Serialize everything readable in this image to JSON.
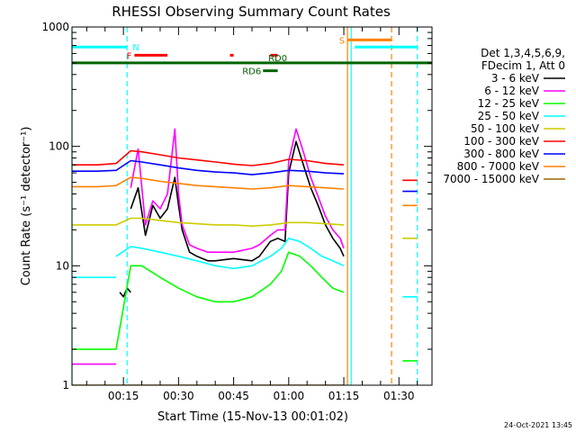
{
  "chart_data": {
    "type": "line",
    "title": "RHESSI Observing Summary Count Rates",
    "xlabel": "Start Time (15-Nov-13 00:01:02)",
    "ylabel": "Count Rate (s⁻¹ detector⁻¹)",
    "y_scale": "log",
    "ylim": [
      1,
      1000
    ],
    "xlim": [
      "00:01",
      "01:39"
    ],
    "grid": false,
    "legend_position": "right",
    "x_ticks": [
      "00:15",
      "00:30",
      "00:45",
      "01:00",
      "01:15",
      "01:30"
    ],
    "y_ticks": [
      "1",
      "10",
      "100",
      "1000"
    ],
    "legend_header": [
      "Det 1,3,4,5,6,9,",
      "FDecim 1, Att 0"
    ],
    "timestamp": "24-Oct-2021 13:45",
    "time_points": [
      "00:01",
      "00:10",
      "00:14",
      "00:17",
      "00:19",
      "00:21",
      "00:23",
      "00:25",
      "00:27",
      "00:29",
      "00:30",
      "00:31",
      "00:33",
      "00:35",
      "00:38",
      "00:40",
      "00:45",
      "00:50",
      "00:52",
      "00:55",
      "00:57",
      "00:59",
      "01:00",
      "01:02",
      "01:04",
      "01:06",
      "01:08",
      "01:10",
      "01:12",
      "01:14",
      "01:15"
    ],
    "series": [
      {
        "name": "3 - 6 keV",
        "color": "#000000",
        "segments": [
          {
            "x": [
              "00:14",
              "00:15",
              "00:16",
              "00:17"
            ],
            "y": [
              6,
              5.5,
              6.5,
              6
            ]
          },
          {
            "x": [
              "00:17",
              "00:19",
              "00:21",
              "00:23",
              "00:25",
              "00:27",
              "00:29",
              "00:30",
              "00:31",
              "00:33",
              "00:35",
              "00:38",
              "00:40",
              "00:45",
              "00:50",
              "00:52",
              "00:55",
              "00:57",
              "00:59",
              "01:00",
              "01:02",
              "01:04",
              "01:06",
              "01:08",
              "01:10",
              "01:12",
              "01:14",
              "01:15"
            ],
            "y": [
              30,
              45,
              18,
              32,
              25,
              30,
              55,
              32,
              20,
              13,
              12,
              11,
              11,
              11.5,
              11,
              12,
              16,
              17,
              16,
              60,
              110,
              70,
              45,
              32,
              22,
              17,
              14,
              12
            ]
          }
        ]
      },
      {
        "name": "6 - 12 keV",
        "color": "#ff00ff",
        "segments": [
          {
            "x": [
              "00:01",
              "00:08",
              "00:13"
            ],
            "y": [
              1.5,
              1.5,
              1.5
            ]
          },
          {
            "x": [
              "00:17",
              "00:19",
              "00:21",
              "00:23",
              "00:25",
              "00:27",
              "00:29",
              "00:30",
              "00:31",
              "00:33",
              "00:35",
              "00:38",
              "00:40",
              "00:45",
              "00:50",
              "00:52",
              "00:55",
              "00:57",
              "00:59",
              "01:00",
              "01:02",
              "01:04",
              "01:06",
              "01:08",
              "01:10",
              "01:12",
              "01:14",
              "01:15"
            ],
            "y": [
              45,
              95,
              22,
              35,
              30,
              40,
              140,
              40,
              22,
              15,
              14,
              13,
              13,
              13,
              14,
              15,
              18,
              20,
              20,
              75,
              140,
              90,
              55,
              38,
              26,
              20,
              17,
              14
            ]
          }
        ]
      },
      {
        "name": "12 - 25 keV",
        "color": "#00ff00",
        "segments": [
          {
            "x": [
              "00:01",
              "00:08",
              "00:13",
              "00:17",
              "00:20",
              "00:25",
              "00:30",
              "00:35",
              "00:40",
              "00:45",
              "00:50",
              "00:55",
              "00:58",
              "01:00",
              "01:03",
              "01:06",
              "01:09",
              "01:12",
              "01:15"
            ],
            "y": [
              2,
              2,
              2,
              10,
              10,
              8,
              6.5,
              5.5,
              5,
              5,
              5.5,
              7,
              9,
              13,
              12,
              10,
              8,
              6.5,
              6
            ]
          },
          {
            "x": [
              "01:31",
              "01:33",
              "01:35"
            ],
            "y": [
              1.6,
              1.6,
              1.6
            ]
          }
        ]
      },
      {
        "name": "25 - 50 keV",
        "color": "#00ffff",
        "segments": [
          {
            "x": [
              "00:01",
              "00:08",
              "00:13"
            ],
            "y": [
              8,
              8,
              8
            ]
          },
          {
            "x": [
              "00:13",
              "00:17",
              "00:20",
              "00:25",
              "00:30",
              "00:35",
              "00:40",
              "00:45",
              "00:50",
              "00:55",
              "00:58",
              "01:00",
              "01:03",
              "01:06",
              "01:09",
              "01:12",
              "01:15"
            ],
            "y": [
              12,
              14.5,
              14,
              13,
              12,
              11,
              10,
              9.5,
              10,
              12,
              14,
              17,
              16,
              14,
              12,
              11,
              10
            ]
          },
          {
            "x": [
              "01:31",
              "01:33",
              "01:35"
            ],
            "y": [
              5.5,
              5.5,
              5.5
            ]
          }
        ]
      },
      {
        "name": "50 - 100 keV",
        "color": "#cccc00",
        "segments": [
          {
            "x": [
              "00:01",
              "00:08",
              "00:13",
              "00:17",
              "00:20",
              "00:25",
              "00:30",
              "00:35",
              "00:40",
              "00:45",
              "00:50",
              "00:55",
              "01:00",
              "01:05",
              "01:10",
              "01:15"
            ],
            "y": [
              22,
              22,
              22,
              25,
              25,
              24,
              23,
              22.5,
              22,
              22,
              21.5,
              22,
              23,
              23,
              22.5,
              22
            ]
          },
          {
            "x": [
              "01:31",
              "01:33",
              "01:35"
            ],
            "y": [
              17,
              17,
              17
            ]
          }
        ]
      },
      {
        "name": "100 - 300 keV",
        "color": "#ff0000",
        "segments": [
          {
            "x": [
              "00:01",
              "00:08",
              "00:13",
              "00:17",
              "00:20",
              "00:25",
              "00:30",
              "00:35",
              "00:40",
              "00:45",
              "00:50",
              "00:55",
              "01:00",
              "01:05",
              "01:10",
              "01:15"
            ],
            "y": [
              70,
              70,
              72,
              92,
              90,
              85,
              80,
              77,
              74,
              71,
              69,
              72,
              78,
              76,
              72,
              70
            ]
          },
          {
            "x": [
              "01:31",
              "01:33",
              "01:35"
            ],
            "y": [
              52,
              52,
              52
            ]
          }
        ]
      },
      {
        "name": "300 - 800 keV",
        "color": "#0000ff",
        "segments": [
          {
            "x": [
              "00:01",
              "00:08",
              "00:13",
              "00:17",
              "00:20",
              "00:25",
              "00:30",
              "00:35",
              "00:40",
              "00:45",
              "00:50",
              "00:55",
              "01:00",
              "01:05",
              "01:10",
              "01:15"
            ],
            "y": [
              62,
              62,
              63,
              76,
              74,
              70,
              66,
              63,
              61,
              60,
              58,
              60,
              63,
              62,
              60,
              59
            ]
          },
          {
            "x": [
              "01:31",
              "01:33",
              "01:35"
            ],
            "y": [
              42,
              42,
              42
            ]
          }
        ]
      },
      {
        "name": "800 - 7000 keV",
        "color": "#ff8000",
        "segments": [
          {
            "x": [
              "00:01",
              "00:08",
              "00:13",
              "00:17",
              "00:20",
              "00:25",
              "00:30",
              "00:35",
              "00:40",
              "00:45",
              "00:50",
              "00:55",
              "01:00",
              "01:05",
              "01:10",
              "01:15"
            ],
            "y": [
              46,
              46,
              47,
              55,
              54,
              51,
              49,
              47,
              46,
              45,
              44,
              45,
              47,
              46,
              45,
              44
            ]
          },
          {
            "x": [
              "01:31",
              "01:33",
              "01:35"
            ],
            "y": [
              32,
              32,
              32
            ]
          }
        ]
      },
      {
        "name": "7000 - 15000 keV",
        "color": "#996600",
        "segments": [
          {
            "x": [
              "00:01",
              "00:15",
              "00:30",
              "00:45",
              "01:00",
              "01:15"
            ],
            "y": [
              1,
              1,
              1,
              1,
              1,
              1
            ]
          }
        ]
      }
    ],
    "state_bars": [
      {
        "label": "N",
        "color": "#00ffff",
        "level": 680,
        "segments": [
          [
            "00:01",
            "00:16"
          ],
          [
            "01:18",
            "01:35"
          ]
        ]
      },
      {
        "label": "F",
        "color": "#ff0000",
        "level": 580,
        "segments": [
          [
            "00:18",
            "00:27"
          ],
          [
            "00:44",
            "00:45"
          ],
          [
            "00:55",
            "00:57"
          ]
        ]
      },
      {
        "label": "S",
        "color": "#ff8000",
        "level": 780,
        "segments": [
          [
            "01:16",
            "01:28"
          ]
        ]
      },
      {
        "label": "RD0",
        "color": "#006400",
        "level": 500,
        "segments": [
          [
            "00:01",
            "01:39"
          ]
        ]
      },
      {
        "label": "RD6",
        "color": "#006400",
        "level": 430,
        "segments": [
          [
            "00:53",
            "00:57"
          ]
        ]
      }
    ],
    "vertical_markers": [
      {
        "x": "00:01",
        "color": "#00ffff",
        "style": "solid"
      },
      {
        "x": "00:16",
        "color": "#00ffff",
        "style": "dashed"
      },
      {
        "x": "01:16",
        "color": "#ff8000",
        "style": "solid"
      },
      {
        "x": "01:17",
        "color": "#00ffff",
        "style": "solid"
      },
      {
        "x": "01:28",
        "color": "#ff8000",
        "style": "dashed"
      },
      {
        "x": "01:35",
        "color": "#00ffff",
        "style": "dashed"
      }
    ]
  }
}
